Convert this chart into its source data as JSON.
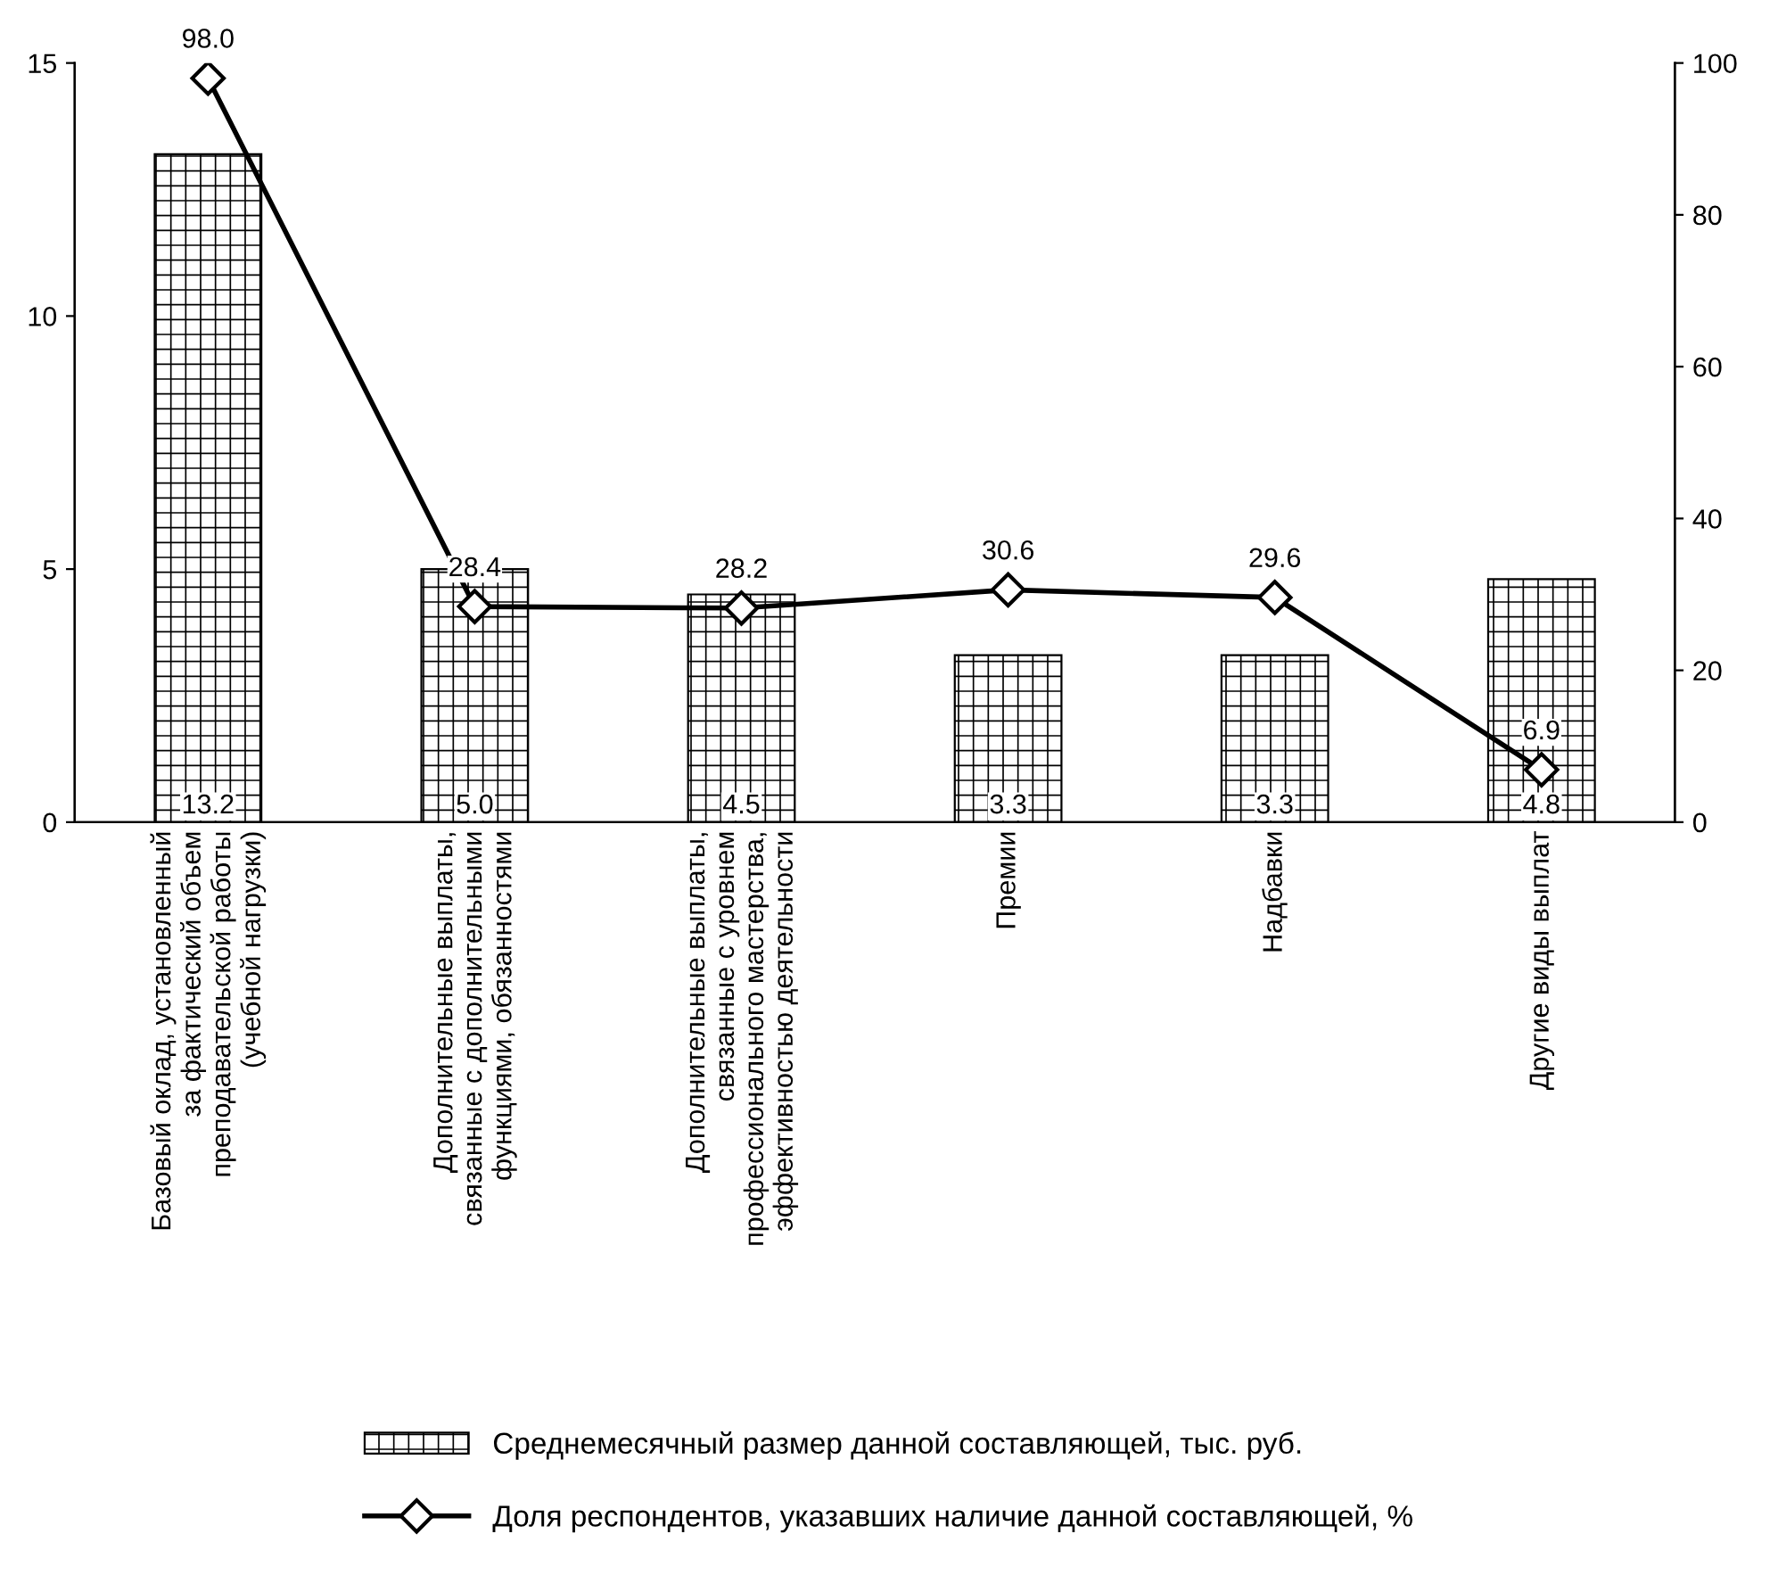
{
  "chart_data": {
    "type": "bar",
    "categories": [
      "Базовый оклад, установленный\nза фактический объем\nпреподавательской работы\n(учебной нагрузки)",
      "Дополнительные выплаты,\nсвязанные с дополнительными\nфункциями, обязанностями",
      "Дополнительные выплаты,\nсвязанные с уровнем\nпрофессионального мастерства,\nэффективностью деятельности",
      "Премии",
      "Надбавки",
      "Другие виды выплат"
    ],
    "series": [
      {
        "name": "Среднемесячный размер данной составляющей, тыс. руб.",
        "color": "#000000",
        "values": [
          13.2,
          5.0,
          4.5,
          3.3,
          3.3,
          4.8
        ],
        "value_labels": [
          "13.2",
          "5.0",
          "4.5",
          "3.3",
          "3.3",
          "4.8"
        ]
      },
      {
        "name": "Доля респондентов, указавших наличие данной составляющей, %",
        "type": "line",
        "axis": "y2",
        "color": "#000000",
        "marker": "diamond",
        "values": [
          98.0,
          28.4,
          28.2,
          30.6,
          29.6,
          6.9
        ],
        "value_labels": [
          "98.0",
          "28.4",
          "28.2",
          "30.6",
          "29.6",
          "6.9"
        ]
      }
    ],
    "ylim": [
      0,
      15
    ],
    "yticks": [
      0,
      5,
      10,
      15
    ],
    "y2lim": [
      0,
      100
    ],
    "y2ticks": [
      0,
      20,
      40,
      60,
      80,
      100
    ],
    "grid": false,
    "legend": "bottom"
  }
}
